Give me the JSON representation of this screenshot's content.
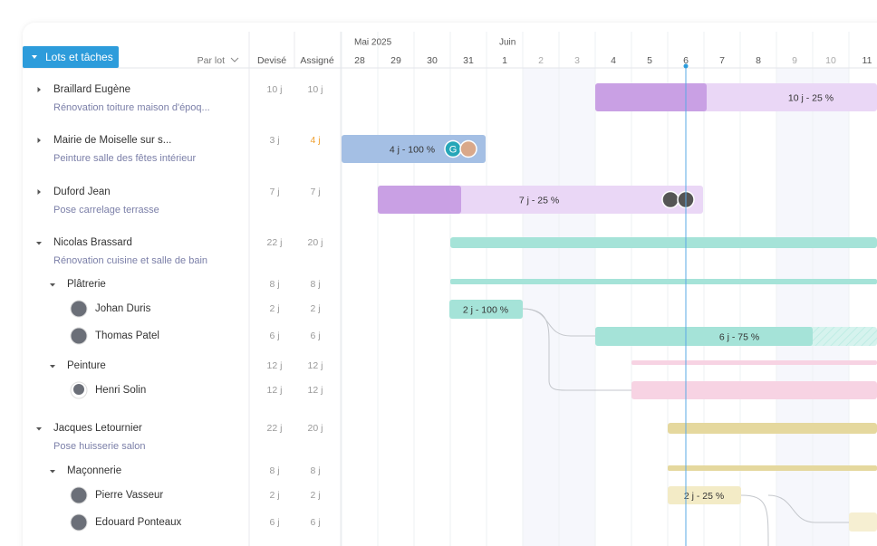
{
  "header": {
    "button": "Lots et tâches",
    "group_by": "Par lot",
    "quoted": "Devisé",
    "assigned": "Assigné"
  },
  "timeline": {
    "months": [
      "Mai 2025",
      "Juin"
    ],
    "days": [
      "28",
      "29",
      "30",
      "31",
      "1",
      "2",
      "3",
      "4",
      "5",
      "6",
      "7",
      "8",
      "9",
      "10",
      "11"
    ]
  },
  "rows": [
    {
      "name": "Braillard Eugène",
      "subtitle": "Rénovation toiture maison d'époq...",
      "quoted": "10 j",
      "assigned": "10 j",
      "bar_label": "10 j - 25 %"
    },
    {
      "name": "Mairie de Moiselle sur s...",
      "subtitle": "Peinture salle des fêtes intérieur",
      "quoted": "3 j",
      "assigned": "4 j",
      "bar_label": "4 j - 100 %",
      "avatar_initial": "G"
    },
    {
      "name": "Duford Jean",
      "subtitle": "Pose carrelage terrasse",
      "quoted": "7 j",
      "assigned": "7 j",
      "bar_label": "7 j - 25 %"
    },
    {
      "name": "Nicolas Brassard",
      "subtitle": "Rénovation cuisine et salle de bain",
      "quoted": "22 j",
      "assigned": "20 j"
    },
    {
      "name": "Plâtrerie",
      "quoted": "8 j",
      "assigned": "8 j"
    },
    {
      "name": "Johan Duris",
      "quoted": "2 j",
      "assigned": "2 j",
      "bar_label": "2 j - 100 %"
    },
    {
      "name": "Thomas Patel",
      "quoted": "6 j",
      "assigned": "6 j",
      "bar_label": "6 j - 75 %"
    },
    {
      "name": "Peinture",
      "quoted": "12 j",
      "assigned": "12 j"
    },
    {
      "name": "Henri Solin",
      "quoted": "12 j",
      "assigned": "12 j"
    },
    {
      "name": "Jacques Letournier",
      "subtitle": "Pose huisserie salon",
      "quoted": "22 j",
      "assigned": "20 j"
    },
    {
      "name": "Maçonnerie",
      "quoted": "8 j",
      "assigned": "8 j"
    },
    {
      "name": "Pierre Vasseur",
      "quoted": "2 j",
      "assigned": "2 j",
      "bar_label": "2 j - 25 %"
    },
    {
      "name": "Edouard Ponteaux",
      "quoted": "6 j",
      "assigned": "6 j"
    }
  ]
}
